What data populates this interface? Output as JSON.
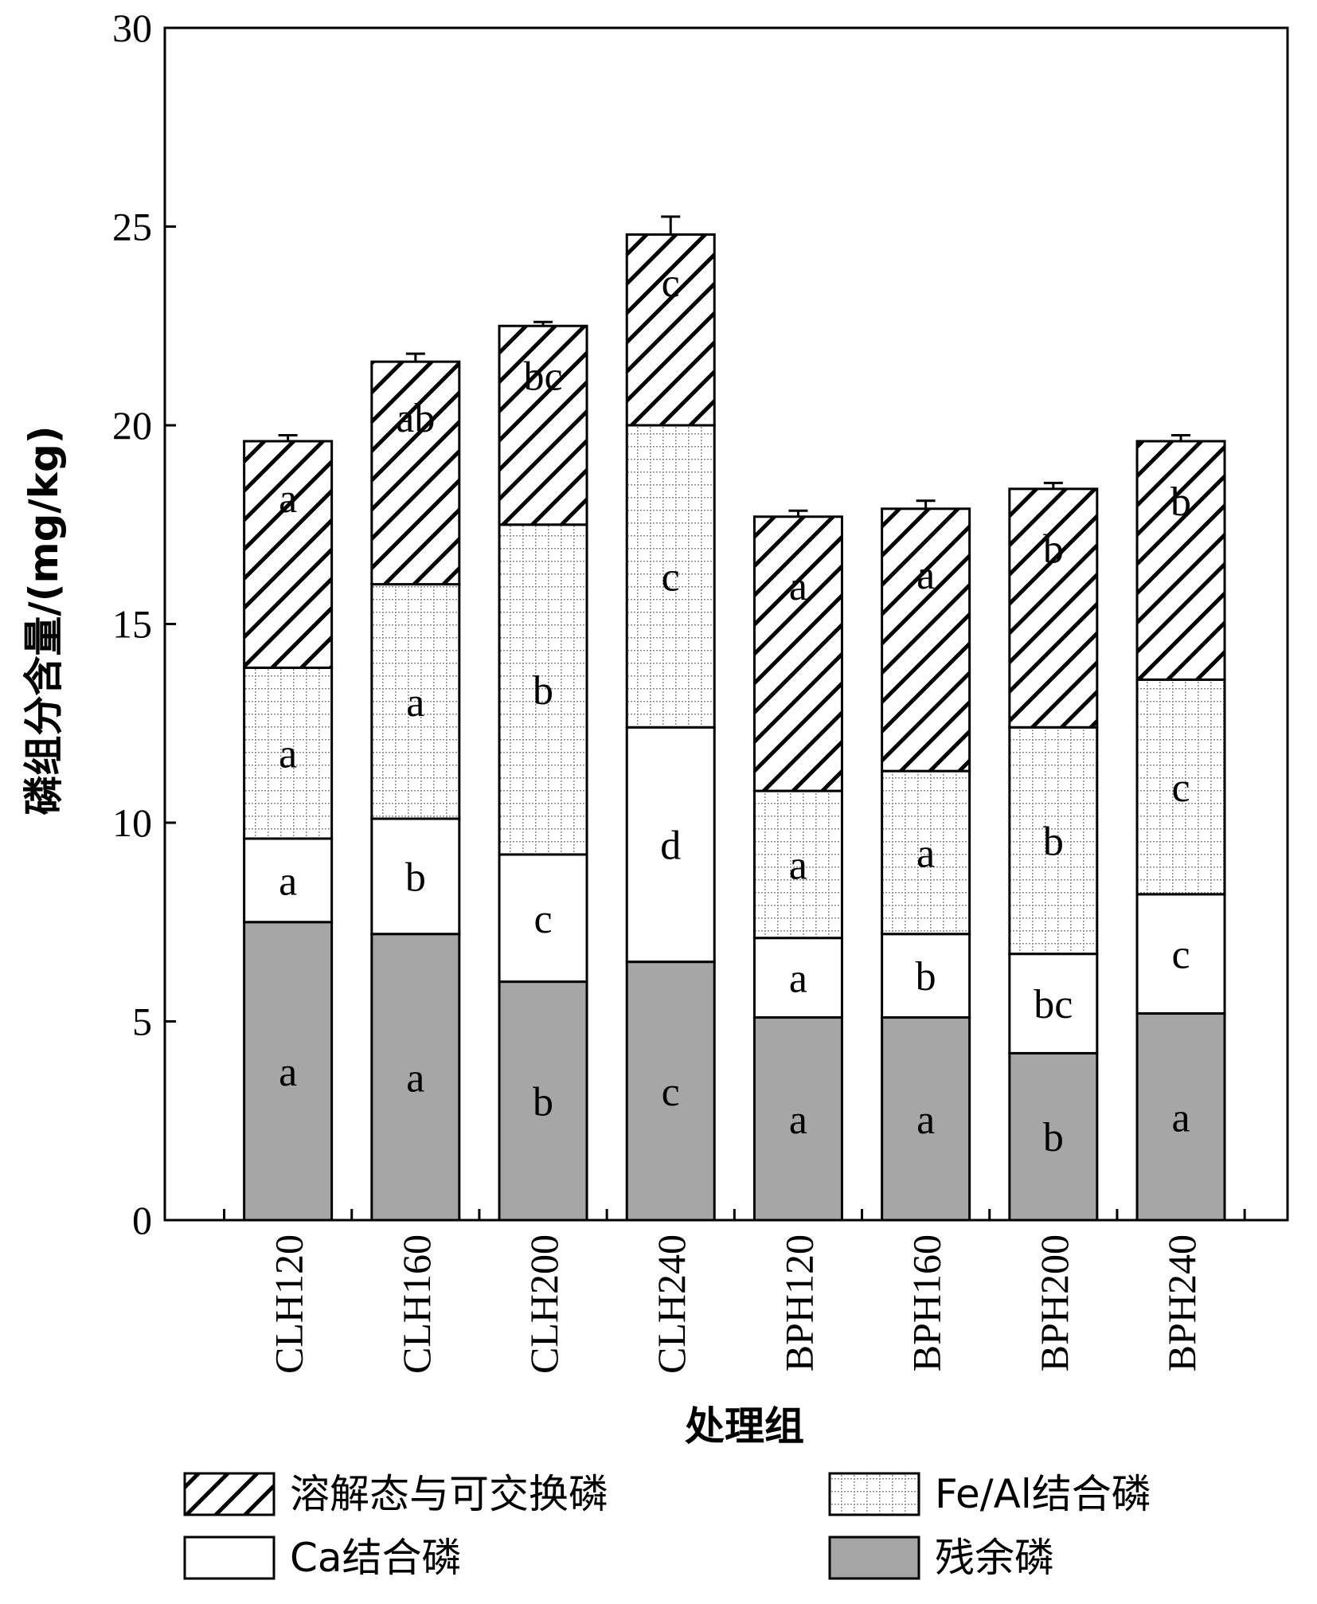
{
  "chart_data": {
    "type": "bar",
    "stacked": true,
    "ylabel": "磷组分含量/(mg/kg)",
    "xlabel": "处理组",
    "ylim": [
      0,
      30
    ],
    "yticks": [
      0,
      5,
      10,
      15,
      20,
      25,
      30
    ],
    "categories": [
      "CLH120",
      "CLH160",
      "CLH200",
      "CLH240",
      "BPH120",
      "BPH160",
      "BPH200",
      "BPH240"
    ],
    "series": [
      {
        "name": "残余磷",
        "pattern": "solid-gray",
        "values": [
          7.5,
          7.2,
          6.0,
          6.5,
          5.1,
          5.1,
          4.2,
          5.2
        ],
        "letters": [
          "a",
          "a",
          "b",
          "c",
          "a",
          "a",
          "b",
          "a"
        ]
      },
      {
        "name": "Ca结合磷",
        "pattern": "white",
        "values": [
          2.1,
          2.9,
          3.2,
          5.9,
          2.0,
          2.1,
          2.5,
          3.0
        ],
        "letters": [
          "a",
          "b",
          "c",
          "d",
          "a",
          "b",
          "bc",
          "c"
        ]
      },
      {
        "name": "Fe/Al结合磷",
        "pattern": "dotted-grid",
        "values": [
          4.3,
          5.9,
          8.3,
          7.6,
          3.7,
          4.1,
          5.7,
          5.4
        ],
        "letters": [
          "a",
          "a",
          "b",
          "c",
          "a",
          "a",
          "b",
          "c"
        ]
      },
      {
        "name": "溶解态与可交换磷",
        "pattern": "diagonal-hatch",
        "values": [
          5.7,
          5.6,
          5.0,
          4.8,
          6.9,
          6.6,
          6.0,
          6.0
        ],
        "letters": [
          "a",
          "ab",
          "bc",
          "c",
          "a",
          "a",
          "b",
          "b"
        ]
      }
    ],
    "error_bars": [
      0.15,
      0.2,
      0.1,
      0.45,
      0.15,
      0.2,
      0.15,
      0.15
    ],
    "legend": {
      "placement": "bottom",
      "items": [
        "溶解态与可交换磷",
        "Fe/Al结合磷",
        "Ca结合磷",
        "残余磷"
      ]
    },
    "colors": {
      "residual": "#a6a6a6",
      "ca": "#ffffff",
      "feal_grid": "#8c8c8c",
      "hatch": "#000000"
    }
  }
}
